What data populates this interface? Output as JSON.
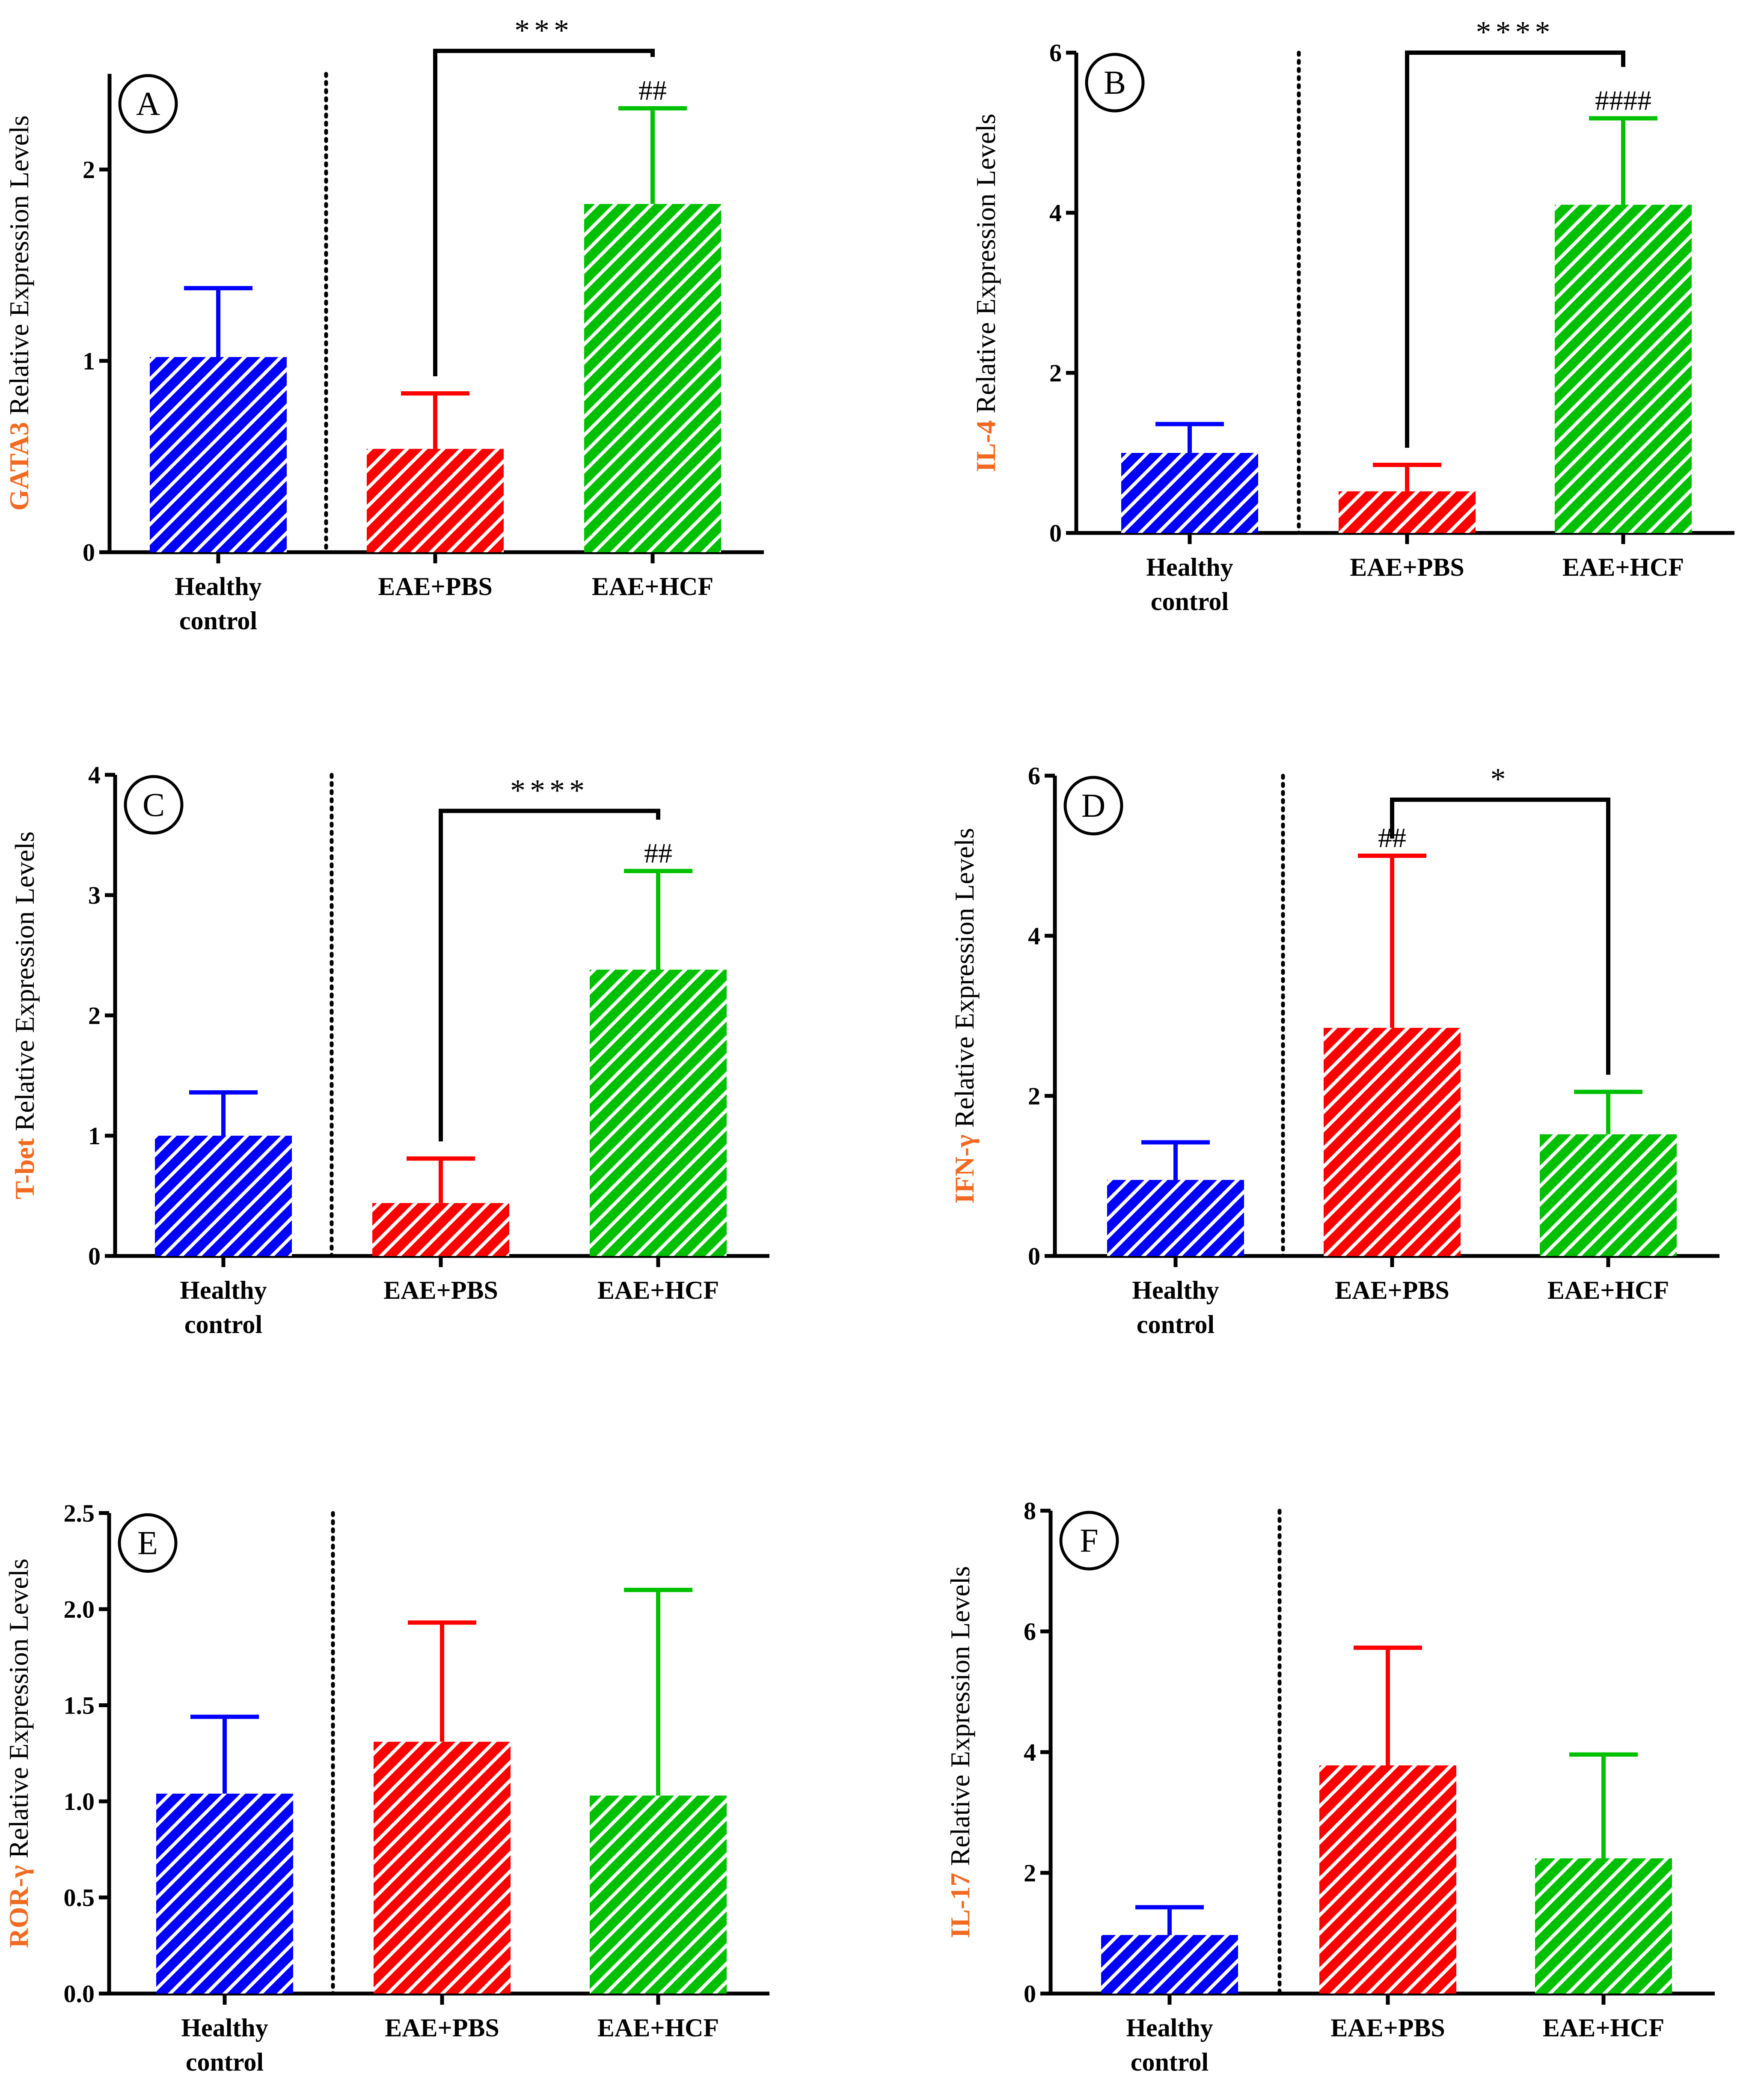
{
  "figure": {
    "categories": [
      {
        "line1": "Healthy",
        "line2": "control"
      },
      {
        "line1": "EAE+PBS",
        "line2": ""
      },
      {
        "line1": "EAE+HCF",
        "line2": ""
      }
    ],
    "ylabel_suffix": "Relative Expression Levels",
    "colors": {
      "healthy": "#0000ff",
      "pbs": "#ff0000",
      "hcf": "#00c000",
      "gene_label": "#f26a21",
      "axis": "#000000"
    }
  },
  "chart_data": [
    {
      "panel": "A",
      "type": "bar",
      "gene": "GATA3",
      "categories": [
        "Healthy control",
        "EAE+PBS",
        "EAE+HCF"
      ],
      "values": [
        1.02,
        0.54,
        1.82
      ],
      "errors": [
        0.36,
        0.29,
        0.5
      ],
      "ylim": [
        0,
        2.5
      ],
      "yticks": [
        "0",
        "1",
        "2"
      ],
      "ytick_values": [
        0,
        1,
        2
      ],
      "comparison": {
        "from": 1,
        "to": 2,
        "label": "***",
        "y": 2.62
      },
      "hash": {
        "bar": 2,
        "label": "##"
      }
    },
    {
      "panel": "B",
      "type": "bar",
      "gene": "IL-4",
      "categories": [
        "Healthy control",
        "EAE+PBS",
        "EAE+HCF"
      ],
      "values": [
        1.0,
        0.52,
        4.1
      ],
      "errors": [
        0.36,
        0.33,
        1.08
      ],
      "ylim": [
        0,
        6
      ],
      "yticks": [
        "0",
        "2",
        "4",
        "6"
      ],
      "ytick_values": [
        0,
        2,
        4,
        6
      ],
      "comparison": {
        "from": 1,
        "to": 2,
        "label": "****",
        "y": 6.0
      },
      "hash": {
        "bar": 2,
        "label": "####"
      }
    },
    {
      "panel": "C",
      "type": "bar",
      "gene": "T-bet",
      "categories": [
        "Healthy control",
        "EAE+PBS",
        "EAE+HCF"
      ],
      "values": [
        1.0,
        0.44,
        2.38
      ],
      "errors": [
        0.36,
        0.37,
        0.82
      ],
      "ylim": [
        0,
        4
      ],
      "yticks": [
        "0",
        "1",
        "2",
        "3",
        "4"
      ],
      "ytick_values": [
        0,
        1,
        2,
        3,
        4
      ],
      "comparison": {
        "from": 1,
        "to": 2,
        "label": "****",
        "y": 3.7
      },
      "hash": {
        "bar": 2,
        "label": "##"
      }
    },
    {
      "panel": "D",
      "type": "bar",
      "gene": "IFN-γ",
      "categories": [
        "Healthy control",
        "EAE+PBS",
        "EAE+HCF"
      ],
      "values": [
        0.95,
        2.85,
        1.52
      ],
      "errors": [
        0.47,
        2.15,
        0.53
      ],
      "ylim": [
        0,
        6
      ],
      "yticks": [
        "0",
        "2",
        "4",
        "6"
      ],
      "ytick_values": [
        0,
        2,
        4,
        6
      ],
      "comparison": {
        "from": 1,
        "to": 2,
        "label": "*",
        "y": 5.7
      },
      "hash": {
        "bar": 1,
        "label": "##"
      }
    },
    {
      "panel": "E",
      "type": "bar",
      "gene": "ROR-γ",
      "categories": [
        "Healthy control",
        "EAE+PBS",
        "EAE+HCF"
      ],
      "values": [
        1.04,
        1.31,
        1.03
      ],
      "errors": [
        0.4,
        0.62,
        1.07
      ],
      "ylim": [
        0,
        2.5
      ],
      "yticks": [
        "0.0",
        "0.5",
        "1.0",
        "1.5",
        "2.0",
        "2.5"
      ],
      "ytick_values": [
        0,
        0.5,
        1.0,
        1.5,
        2.0,
        2.5
      ],
      "comparison": null,
      "hash": null
    },
    {
      "panel": "F",
      "type": "bar",
      "gene": "IL-17",
      "categories": [
        "Healthy control",
        "EAE+PBS",
        "EAE+HCF"
      ],
      "values": [
        0.97,
        3.78,
        2.24
      ],
      "errors": [
        0.46,
        1.95,
        1.72
      ],
      "ylim": [
        0,
        8
      ],
      "yticks": [
        "0",
        "2",
        "4",
        "6",
        "8"
      ],
      "ytick_values": [
        0,
        2,
        4,
        6,
        8
      ],
      "comparison": null,
      "hash": null
    }
  ]
}
